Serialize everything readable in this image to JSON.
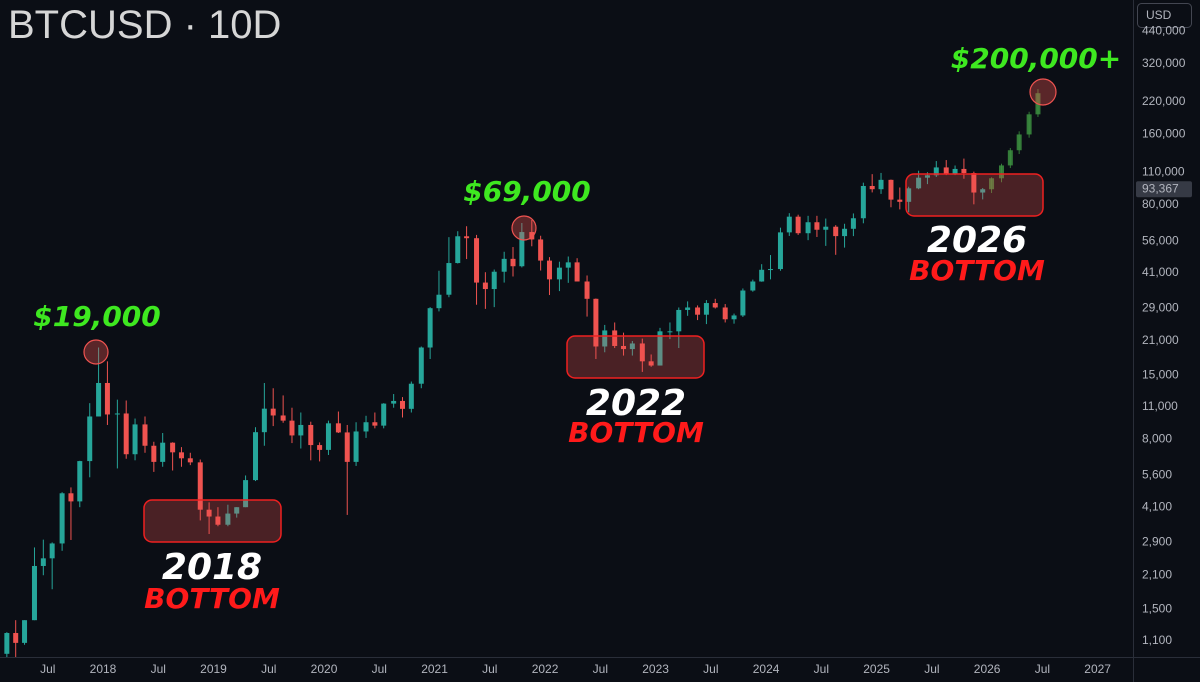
{
  "chart_data": {
    "type": "candlestick",
    "title": "BTCUSD · 10D",
    "currency": "USD",
    "log_scale": true,
    "grid": false,
    "up_color": "#26a69a",
    "down_color": "#ef5350",
    "xlim": [
      2017.068,
      2027.32
    ],
    "ylim": [
      940,
      600000
    ],
    "xticks": [
      {
        "value": 2017.5,
        "label": "Jul"
      },
      2018,
      {
        "value": 2018.5,
        "label": "Jul"
      },
      2019,
      {
        "value": 2019.5,
        "label": "Jul"
      },
      2020,
      {
        "value": 2020.5,
        "label": "Jul"
      },
      2021,
      {
        "value": 2021.5,
        "label": "Jul"
      },
      2022,
      {
        "value": 2022.5,
        "label": "Jul"
      },
      2023,
      {
        "value": 2023.5,
        "label": "Jul"
      },
      2024,
      {
        "value": 2024.5,
        "label": "Jul"
      },
      2025,
      {
        "value": 2025.5,
        "label": "Jul"
      },
      2026,
      {
        "value": 2026.5,
        "label": "Jul"
      },
      2027
    ],
    "yticks": [
      {
        "value": 440000,
        "label": "440,000"
      },
      {
        "value": 320000,
        "label": "320,000"
      },
      {
        "value": 220000,
        "label": "220,000"
      },
      {
        "value": 160000,
        "label": "160,000"
      },
      {
        "value": 110000,
        "label": "110,000"
      },
      {
        "value": 80000,
        "label": "80,000"
      },
      {
        "value": 56000,
        "label": "56,000"
      },
      {
        "value": 41000,
        "label": "41,000"
      },
      {
        "value": 29000,
        "label": "29,000"
      },
      {
        "value": 21000,
        "label": "21,000"
      },
      {
        "value": 15000,
        "label": "15,000"
      },
      {
        "value": 11000,
        "label": "11,000"
      },
      {
        "value": 8000,
        "label": "8,000"
      },
      {
        "value": 5600,
        "label": "5,600"
      },
      {
        "value": 4100,
        "label": "4,100"
      },
      {
        "value": 2900,
        "label": "2,900"
      },
      {
        "value": 2100,
        "label": "2,100"
      },
      {
        "value": 1500,
        "label": "1,500"
      },
      {
        "value": 1100,
        "label": "1,100"
      }
    ],
    "last_price": {
      "value": 93367,
      "label": "93,367"
    },
    "candles": {
      "x": [
        2017.13,
        2017.21,
        2017.29,
        2017.38,
        2017.46,
        2017.54,
        2017.63,
        2017.71,
        2017.79,
        2017.88,
        2017.96,
        2018.04,
        2018.13,
        2018.21,
        2018.29,
        2018.38,
        2018.46,
        2018.54,
        2018.63,
        2018.71,
        2018.79,
        2018.88,
        2018.96,
        2019.04,
        2019.13,
        2019.21,
        2019.29,
        2019.38,
        2019.46,
        2019.54,
        2019.63,
        2019.71,
        2019.79,
        2019.88,
        2019.96,
        2020.04,
        2020.13,
        2020.21,
        2020.29,
        2020.38,
        2020.46,
        2020.54,
        2020.63,
        2020.71,
        2020.79,
        2020.88,
        2020.96,
        2021.04,
        2021.13,
        2021.21,
        2021.29,
        2021.38,
        2021.46,
        2021.54,
        2021.63,
        2021.71,
        2021.79,
        2021.88,
        2021.96,
        2022.04,
        2022.13,
        2022.21,
        2022.29,
        2022.38,
        2022.46,
        2022.54,
        2022.63,
        2022.71,
        2022.79,
        2022.88,
        2022.96,
        2023.04,
        2023.13,
        2023.21,
        2023.29,
        2023.38,
        2023.46,
        2023.54,
        2023.63,
        2023.71,
        2023.79,
        2023.88,
        2023.96,
        2024.04,
        2024.13,
        2024.21,
        2024.29,
        2024.38,
        2024.46,
        2024.54,
        2024.63,
        2024.71,
        2024.79,
        2024.88,
        2024.96,
        2025.04,
        2025.13,
        2025.21,
        2025.29,
        2025.38,
        2025.46,
        2025.54,
        2025.63,
        2025.71,
        2025.79,
        2025.88,
        2025.96
      ],
      "open": [
        970,
        1190,
        1080,
        1350,
        2300,
        2480,
        2870,
        4700,
        4340,
        6450,
        10000,
        13900,
        10200,
        10300,
        6900,
        9250,
        7500,
        6400,
        7730,
        7030,
        6630,
        6370,
        4000,
        3740,
        3450,
        3850,
        4100,
        5350,
        8570,
        10800,
        10100,
        9600,
        8300,
        9200,
        7550,
        7200,
        9350,
        8550,
        6400,
        8630,
        9450,
        9140,
        11350,
        11650,
        10780,
        13800,
        19700,
        29000,
        33100,
        45200,
        58800,
        57700,
        37300,
        35000,
        41500,
        47100,
        43800,
        61300,
        57000,
        46300,
        38500,
        43200,
        45500,
        37700,
        31800,
        19900,
        23300,
        20000,
        19400,
        20500,
        17200,
        16500,
        23100,
        23100,
        28500,
        29200,
        27200,
        30500,
        29200,
        26000,
        27000,
        34500,
        37700,
        42300,
        42600,
        61100,
        71300,
        60600,
        67500,
        62700,
        64600,
        58900,
        63300,
        70200,
        96400,
        93400,
        102400,
        84300,
        82500,
        94200,
        104600,
        107100,
        115700,
        108200,
        114000,
        109500,
        90400
      ],
      "high": [
        1200,
        1350,
        1350,
        2760,
        2980,
        2900,
        4750,
        4980,
        6470,
        11400,
        19700,
        17200,
        11800,
        11700,
        9800,
        10000,
        7800,
        8500,
        7760,
        7400,
        7000,
        6550,
        4300,
        4100,
        4200,
        4100,
        5600,
        9000,
        13900,
        13200,
        12300,
        10900,
        10400,
        9500,
        7750,
        9600,
        10500,
        9200,
        9450,
        10070,
        10400,
        11400,
        12470,
        12100,
        14100,
        19900,
        29300,
        41900,
        58300,
        61800,
        64900,
        59600,
        41300,
        42400,
        50500,
        52900,
        67000,
        69000,
        59100,
        47900,
        45800,
        48200,
        47400,
        40000,
        31900,
        24600,
        25200,
        22800,
        21000,
        21500,
        18400,
        23900,
        25200,
        29200,
        31000,
        29800,
        31400,
        31800,
        30200,
        27500,
        35200,
        38400,
        44700,
        48900,
        64000,
        73800,
        72700,
        71900,
        71900,
        70000,
        65600,
        66500,
        73600,
        99600,
        108300,
        109600,
        102700,
        95000,
        95700,
        112000,
        110400,
        123200,
        124400,
        117900,
        126200,
        111000,
        94500
      ],
      "low": [
        920,
        890,
        1060,
        1350,
        2100,
        1830,
        2670,
        2970,
        4100,
        5500,
        10000,
        9200,
        6000,
        6600,
        6500,
        7000,
        5800,
        6100,
        5880,
        6100,
        6200,
        3600,
        3150,
        3400,
        3400,
        3700,
        4100,
        5300,
        7500,
        9100,
        9400,
        7700,
        7300,
        6500,
        6430,
        6850,
        8500,
        3800,
        6150,
        8100,
        8900,
        8900,
        10900,
        9900,
        10400,
        13200,
        17600,
        28100,
        32300,
        45000,
        47000,
        30000,
        28800,
        29300,
        37300,
        39600,
        43300,
        53300,
        42000,
        33000,
        34300,
        37200,
        37700,
        26700,
        17600,
        18800,
        19600,
        18200,
        18200,
        15500,
        16300,
        16500,
        21400,
        19600,
        26900,
        25800,
        24800,
        28900,
        25200,
        24900,
        26600,
        34100,
        37600,
        38500,
        41900,
        59000,
        59600,
        56600,
        58400,
        53500,
        49000,
        52600,
        58900,
        66800,
        90500,
        89200,
        78200,
        76600,
        74500,
        93400,
        98200,
        105300,
        107300,
        107300,
        103500,
        80500,
        84500
      ],
      "close": [
        1190,
        1080,
        1350,
        2300,
        2480,
        2870,
        4700,
        4340,
        6450,
        10000,
        13900,
        10200,
        10300,
        6900,
        9250,
        7500,
        6400,
        7730,
        7030,
        6630,
        6370,
        4000,
        3740,
        3450,
        3850,
        4100,
        5350,
        8570,
        10800,
        10100,
        9600,
        8300,
        9200,
        7550,
        7200,
        9350,
        8550,
        6400,
        8630,
        9450,
        9140,
        11350,
        11650,
        10780,
        13800,
        19700,
        29000,
        33100,
        45200,
        58800,
        57700,
        37300,
        35000,
        41500,
        47100,
        43800,
        61300,
        57000,
        46300,
        38500,
        43200,
        45500,
        37700,
        31800,
        19900,
        23300,
        20000,
        19400,
        20500,
        17200,
        16500,
        23100,
        23100,
        28500,
        29200,
        27200,
        30500,
        29200,
        26000,
        27000,
        34500,
        37700,
        42300,
        42600,
        61100,
        71300,
        60600,
        67500,
        62700,
        64600,
        58900,
        63300,
        70200,
        96400,
        93400,
        102400,
        84300,
        82500,
        94200,
        104600,
        107100,
        115700,
        108200,
        114000,
        109500,
        90400,
        93367
      ]
    },
    "projection": {
      "color": "#3c8f3f",
      "x": [
        2026.04,
        2026.13,
        2026.21,
        2026.29,
        2026.38,
        2026.46
      ],
      "open": [
        93367,
        104000,
        118000,
        137000,
        160000,
        195000
      ],
      "high": [
        105000,
        120000,
        140000,
        165000,
        200000,
        250000
      ],
      "low": [
        90000,
        100000,
        115000,
        132000,
        155000,
        190000
      ],
      "close": [
        104000,
        118000,
        137000,
        160000,
        195000,
        240000
      ]
    },
    "annotations": [
      {
        "text": "$19,000",
        "color": "#3ee820"
      },
      {
        "text": "$69,000",
        "color": "#3ee820"
      },
      {
        "text": "$200,000+",
        "color": "#3ee820"
      },
      {
        "text": "2018",
        "color": "#ffffff"
      },
      {
        "text": "BOTTOM",
        "color": "#ff1a1a"
      },
      {
        "text": "2022",
        "color": "#ffffff"
      },
      {
        "text": "BOTTOM",
        "color": "#ff1a1a"
      },
      {
        "text": "2026",
        "color": "#ffffff"
      },
      {
        "text": "BOTTOM",
        "color": "#ff1a1a"
      }
    ]
  }
}
